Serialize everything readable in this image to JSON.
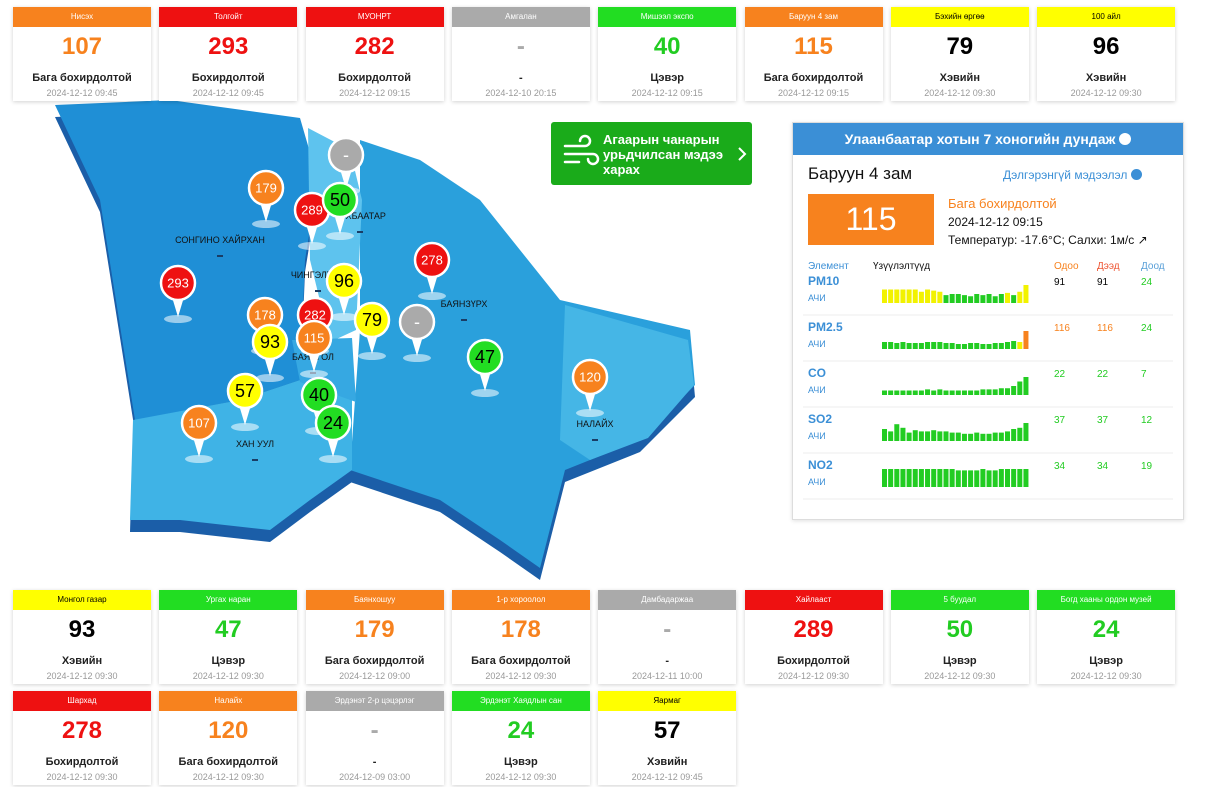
{
  "stations": [
    {
      "name": "Нисэх",
      "value": 107,
      "status": "Бага бохирдолтой",
      "time": "2024-12-12 09:45",
      "color": "#f7821e",
      "text_color": "#f7821e",
      "label_color": "#ffffff"
    },
    {
      "name": "Толгойт",
      "value": 293,
      "status": "Бохирдолтой",
      "time": "2024-12-12 09:45",
      "color": "#ee1111",
      "text_color": "#ee1111",
      "label_color": "#ffffff"
    },
    {
      "name": "МУОНРТ",
      "value": 282,
      "status": "Бохирдолтой",
      "time": "2024-12-12 09:15",
      "color": "#ee1111",
      "text_color": "#ee1111",
      "label_color": "#ffffff"
    },
    {
      "name": "Амгалан",
      "value": "-",
      "status": "-",
      "time": "2024-12-10 20:15",
      "color": "#aaaaaa",
      "text_color": "#aaaaaa",
      "label_color": "#ffffff"
    },
    {
      "name": "Мишээл экспо",
      "value": 40,
      "status": "Цэвэр",
      "time": "2024-12-12 09:15",
      "color": "#22dd22",
      "text_color": "#22cc22",
      "label_color": "#ffffff"
    },
    {
      "name": "Баруун 4 зам",
      "value": 115,
      "status": "Бага бохирдолтой",
      "time": "2024-12-12 09:15",
      "color": "#f7821e",
      "text_color": "#f7821e",
      "label_color": "#ffffff"
    },
    {
      "name": "Бэхийн өргөө",
      "value": 79,
      "status": "Хэвийн",
      "time": "2024-12-12 09:30",
      "color": "#ffff00",
      "text_color": "#000000",
      "label_color": "#000000"
    },
    {
      "name": "100 айл",
      "value": 96,
      "status": "Хэвийн",
      "time": "2024-12-12 09:30",
      "color": "#ffff00",
      "text_color": "#000000",
      "label_color": "#000000"
    },
    {
      "name": "Монгол газар",
      "value": 93,
      "status": "Хэвийн",
      "time": "2024-12-12 09:30",
      "color": "#ffff00",
      "text_color": "#000000",
      "label_color": "#000000"
    },
    {
      "name": "Ургах наран",
      "value": 47,
      "status": "Цэвэр",
      "time": "2024-12-12 09:30",
      "color": "#22dd22",
      "text_color": "#22cc22",
      "label_color": "#ffffff"
    },
    {
      "name": "Баянхошуу",
      "value": 179,
      "status": "Бага бохирдолтой",
      "time": "2024-12-12 09:00",
      "color": "#f7821e",
      "text_color": "#f7821e",
      "label_color": "#ffffff"
    },
    {
      "name": "1-р хороолол",
      "value": 178,
      "status": "Бага бохирдолтой",
      "time": "2024-12-12 09:30",
      "color": "#f7821e",
      "text_color": "#f7821e",
      "label_color": "#ffffff"
    },
    {
      "name": "Дамбадаржаа",
      "value": "-",
      "status": "-",
      "time": "2024-12-11 10:00",
      "color": "#aaaaaa",
      "text_color": "#aaaaaa",
      "label_color": "#ffffff"
    },
    {
      "name": "Хайлааст",
      "value": 289,
      "status": "Бохирдолтой",
      "time": "2024-12-12 09:30",
      "color": "#ee1111",
      "text_color": "#ee1111",
      "label_color": "#ffffff"
    },
    {
      "name": "5 буудал",
      "value": 50,
      "status": "Цэвэр",
      "time": "2024-12-12 09:30",
      "color": "#22dd22",
      "text_color": "#22cc22",
      "label_color": "#ffffff"
    },
    {
      "name": "Богд хааны ордон музей",
      "value": 24,
      "status": "Цэвэр",
      "time": "2024-12-12 09:30",
      "color": "#22dd22",
      "text_color": "#22cc22",
      "label_color": "#ffffff"
    },
    {
      "name": "Шархад",
      "value": 278,
      "status": "Бохирдолтой",
      "time": "2024-12-12 09:30",
      "color": "#ee1111",
      "text_color": "#ee1111",
      "label_color": "#ffffff"
    },
    {
      "name": "Налайх",
      "value": 120,
      "status": "Бага бохирдолтой",
      "time": "2024-12-12 09:30",
      "color": "#f7821e",
      "text_color": "#f7821e",
      "label_color": "#ffffff"
    },
    {
      "name": "Эрдэнэт 2-р цэцэрлэг",
      "value": "-",
      "status": "-",
      "time": "2024-12-09 03:00",
      "color": "#aaaaaa",
      "text_color": "#aaaaaa",
      "label_color": "#ffffff"
    },
    {
      "name": "Эрдэнэт Хаядлын сан",
      "value": 24,
      "status": "Цэвэр",
      "time": "2024-12-12 09:30",
      "color": "#22dd22",
      "text_color": "#22cc22",
      "label_color": "#ffffff"
    },
    {
      "name": "Яармаг",
      "value": 57,
      "status": "Хэвийн",
      "time": "2024-12-12 09:45",
      "color": "#ffff00",
      "text_color": "#000000",
      "label_color": "#000000"
    }
  ],
  "map": {
    "districts": [
      "СОНГИНО ХАЙРХАН",
      "ЧИНГЭЛТЭЙ",
      "СҮХБААТАР",
      "БАЯНЗҮРХ",
      "БАЯНГОЛ",
      "ХАН УУЛ",
      "НАЛАЙХ"
    ],
    "markers": [
      {
        "value": "-",
        "color": "#aaaaaa",
        "text_color": "#ffffff"
      },
      {
        "value": 179,
        "color": "#f7821e",
        "text_color": "#ffffff"
      },
      {
        "value": 289,
        "color": "#ee1111",
        "text_color": "#ffffff"
      },
      {
        "value": 50,
        "color": "#22dd22",
        "text_color": "#000000"
      },
      {
        "value": 278,
        "color": "#ee1111",
        "text_color": "#ffffff"
      },
      {
        "value": 293,
        "color": "#ee1111",
        "text_color": "#ffffff"
      },
      {
        "value": 96,
        "color": "#ffff00",
        "text_color": "#000000"
      },
      {
        "value": 178,
        "color": "#f7821e",
        "text_color": "#ffffff"
      },
      {
        "value": 282,
        "color": "#ee1111",
        "text_color": "#ffffff"
      },
      {
        "value": 79,
        "color": "#ffff00",
        "text_color": "#000000"
      },
      {
        "value": "-",
        "color": "#aaaaaa",
        "text_color": "#ffffff"
      },
      {
        "value": 93,
        "color": "#ffff00",
        "text_color": "#000000"
      },
      {
        "value": 115,
        "color": "#f7821e",
        "text_color": "#ffffff"
      },
      {
        "value": 47,
        "color": "#22dd22",
        "text_color": "#000000"
      },
      {
        "value": 120,
        "color": "#f7821e",
        "text_color": "#ffffff"
      },
      {
        "value": 57,
        "color": "#ffff00",
        "text_color": "#000000"
      },
      {
        "value": 40,
        "color": "#22dd22",
        "text_color": "#000000"
      },
      {
        "value": 107,
        "color": "#f7821e",
        "text_color": "#ffffff"
      },
      {
        "value": 24,
        "color": "#22dd22",
        "text_color": "#000000"
      }
    ]
  },
  "forecast_button": "Агаарын чанарын урьдчилсан мэдээ харах",
  "panel": {
    "title": "Улаанбаатар хотын 7 хоногийн дундаж",
    "station": "Баруун 4 зам",
    "link": "Дэлгэрэнгүй мэдээлэл",
    "value": 115,
    "status": "Бага бохирдолтой",
    "time": "2024-12-12 09:15",
    "weather": "Температур: -17.6°C; Салхи: 1м/с",
    "headers": [
      "Элемент",
      "Үзүүлэлтүүд",
      "Одоо",
      "Дээд",
      "Доод"
    ],
    "min_color": "#22cc22",
    "rows": [
      {
        "element": "PM10",
        "unit": "АЧИ",
        "now": 91,
        "max": 91,
        "min": 24,
        "color": "#000000",
        "bars": [
          12,
          12,
          12,
          12,
          12,
          12,
          10,
          12,
          11,
          10,
          7,
          8,
          8,
          7,
          6,
          8,
          7,
          8,
          6,
          8,
          9,
          7,
          10,
          16
        ],
        "colors": [
          "#f2f200",
          "#f2f200",
          "#f2f200",
          "#f2f200",
          "#f2f200",
          "#f2f200",
          "#f2f200",
          "#f2f200",
          "#f2f200",
          "#f2f200",
          "#22cc22",
          "#22cc22",
          "#22cc22",
          "#22cc22",
          "#22cc22",
          "#22cc22",
          "#22cc22",
          "#22cc22",
          "#22cc22",
          "#22cc22",
          "#f2f200",
          "#22cc22",
          "#f2f200",
          "#f2f200"
        ]
      },
      {
        "element": "PM2.5",
        "unit": "АЧИ",
        "now": 116,
        "max": 116,
        "min": 24,
        "color": "#f7821e",
        "bars": [
          7,
          7,
          6,
          7,
          6,
          6,
          6,
          7,
          7,
          7,
          6,
          6,
          5,
          5,
          6,
          6,
          5,
          5,
          6,
          6,
          7,
          8,
          7,
          18
        ],
        "colors": [
          "#22cc22",
          "#22cc22",
          "#22cc22",
          "#22cc22",
          "#22cc22",
          "#22cc22",
          "#22cc22",
          "#22cc22",
          "#22cc22",
          "#22cc22",
          "#22cc22",
          "#22cc22",
          "#22cc22",
          "#22cc22",
          "#22cc22",
          "#22cc22",
          "#22cc22",
          "#22cc22",
          "#22cc22",
          "#22cc22",
          "#22cc22",
          "#22cc22",
          "#f2f200",
          "#f7821e"
        ]
      },
      {
        "element": "CO",
        "unit": "АЧИ",
        "now": 22,
        "max": 22,
        "min": 7,
        "color": "#22cc22",
        "bars": [
          4,
          4,
          4,
          4,
          4,
          4,
          4,
          5,
          4,
          5,
          4,
          4,
          4,
          4,
          4,
          4,
          5,
          5,
          5,
          6,
          6,
          8,
          12,
          16
        ],
        "colors": [
          "#22cc22",
          "#22cc22",
          "#22cc22",
          "#22cc22",
          "#22cc22",
          "#22cc22",
          "#22cc22",
          "#22cc22",
          "#22cc22",
          "#22cc22",
          "#22cc22",
          "#22cc22",
          "#22cc22",
          "#22cc22",
          "#22cc22",
          "#22cc22",
          "#22cc22",
          "#22cc22",
          "#22cc22",
          "#22cc22",
          "#22cc22",
          "#22cc22",
          "#22cc22",
          "#22cc22"
        ]
      },
      {
        "element": "SO2",
        "unit": "АЧИ",
        "now": 37,
        "max": 37,
        "min": 12,
        "color": "#22cc22",
        "bars": [
          10,
          8,
          14,
          11,
          7,
          9,
          8,
          8,
          9,
          8,
          8,
          7,
          7,
          6,
          6,
          7,
          6,
          6,
          7,
          7,
          8,
          10,
          11,
          15
        ],
        "colors": [
          "#22cc22",
          "#22cc22",
          "#22cc22",
          "#22cc22",
          "#22cc22",
          "#22cc22",
          "#22cc22",
          "#22cc22",
          "#22cc22",
          "#22cc22",
          "#22cc22",
          "#22cc22",
          "#22cc22",
          "#22cc22",
          "#22cc22",
          "#22cc22",
          "#22cc22",
          "#22cc22",
          "#22cc22",
          "#22cc22",
          "#22cc22",
          "#22cc22",
          "#22cc22",
          "#22cc22"
        ]
      },
      {
        "element": "NO2",
        "unit": "АЧИ",
        "now": 34,
        "max": 34,
        "min": 19,
        "color": "#22cc22",
        "bars": [
          13,
          13,
          13,
          13,
          13,
          13,
          13,
          13,
          13,
          13,
          13,
          13,
          12,
          12,
          12,
          12,
          13,
          12,
          12,
          13,
          13,
          13,
          13,
          13
        ],
        "colors": [
          "#22cc22",
          "#22cc22",
          "#22cc22",
          "#22cc22",
          "#22cc22",
          "#22cc22",
          "#22cc22",
          "#22cc22",
          "#22cc22",
          "#22cc22",
          "#22cc22",
          "#22cc22",
          "#22cc22",
          "#22cc22",
          "#22cc22",
          "#22cc22",
          "#22cc22",
          "#22cc22",
          "#22cc22",
          "#22cc22",
          "#22cc22",
          "#22cc22",
          "#22cc22",
          "#22cc22"
        ]
      }
    ]
  }
}
